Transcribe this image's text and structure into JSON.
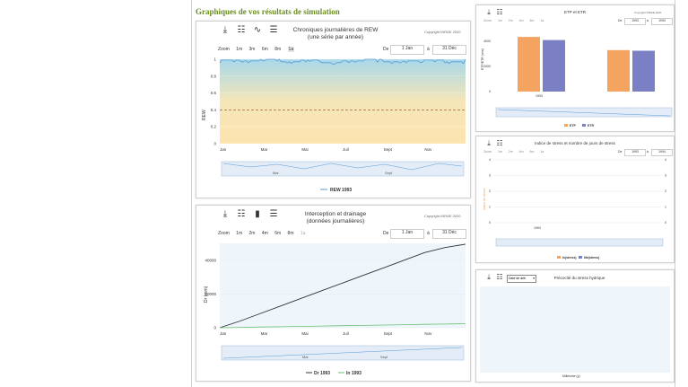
{
  "page_title": "Graphiques de vos résultats de simulation",
  "copyright": "Copyright INRAE 2020",
  "zoom_label": "Zoom",
  "zoom_buttons": [
    "1m",
    "3m",
    "6m",
    "1a"
  ],
  "range_de": "De",
  "range_a": "à",
  "range_from": "1 Jan",
  "range_to": "31 Déc",
  "months": [
    "Jan",
    "Mar",
    "Mai",
    "Juil",
    "Sept",
    "Nov"
  ],
  "rew_chart": {
    "title_line1": "Chroniques journalières de REW",
    "title_line2": "(une série par année)",
    "ylabel": "REW",
    "yticks": [
      "1",
      "0.8",
      "0.6",
      "0.4",
      "0.2",
      "0"
    ],
    "legend": "REW 1993",
    "series_color": "#5b9bd5"
  },
  "interception_chart": {
    "title_line1": "Interception et drainage",
    "title_line2": "(données journalières)",
    "ylabel": "Dr (mm)",
    "yticks": [
      "40000",
      "20000",
      "0"
    ],
    "legend_dr": "Dr 1993",
    "legend_in": "In 1993",
    "zoom_buttons": [
      "1m",
      "2m",
      "4m",
      "6m",
      "8m",
      "1a"
    ]
  },
  "etp_chart": {
    "title": "ETP et ETR",
    "ylabel": "ETP/ETR (mm)",
    "yticks": [
      "4000",
      "2000",
      "0"
    ],
    "xtick": "1993",
    "range_from": "1993",
    "range_to": "1994",
    "legend_etp": "ETP",
    "legend_etr": "ETR",
    "color_etp": "#f4a460",
    "color_etr": "#7b7fc4"
  },
  "stress_chart": {
    "title": "Indice de stress et nombre de jours de stress",
    "ylabel": "Indice de stress",
    "yticks": [
      "4",
      "3",
      "2",
      "1",
      "0"
    ],
    "xtick": "1993",
    "range_from": "1993",
    "range_to": "1994",
    "legend_is": "Is(stress)",
    "legend_nj": "Nb(stress)"
  },
  "precocity_chart": {
    "title": "Précocité du stress hydrique",
    "select_value": "Date de déb",
    "xlabel": "Millésime (y)"
  },
  "chart_data": [
    {
      "type": "line",
      "title": "Chroniques journalières de REW",
      "ylabel": "REW",
      "ylim": [
        0,
        1
      ],
      "series": [
        {
          "name": "REW 1993",
          "values": [
            0.99,
            0.98,
            1.0,
            0.97,
            0.99,
            0.96,
            0.98,
            1.0,
            0.97,
            0.98,
            0.99,
            0.97,
            1.0
          ]
        }
      ],
      "reference_line": 0.4
    },
    {
      "type": "line",
      "title": "Interception et drainage",
      "ylabel": "Dr (mm)",
      "ylim": [
        0,
        50000
      ],
      "series": [
        {
          "name": "Dr 1993",
          "values": [
            0,
            4000,
            8500,
            13000,
            17500,
            22000,
            26500,
            31000,
            35500,
            40000,
            44500,
            47500,
            49500
          ]
        },
        {
          "name": "In 1993",
          "values": [
            0,
            200,
            400,
            600,
            800,
            1000,
            1200,
            1400,
            1600,
            1800,
            2000,
            2200,
            2400
          ]
        }
      ]
    },
    {
      "type": "bar",
      "title": "ETP et ETR",
      "ylim": [
        0,
        5000
      ],
      "categories": [
        "1993",
        "1994"
      ],
      "series": [
        {
          "name": "ETP",
          "values": [
            4350,
            3300
          ]
        },
        {
          "name": "ETR",
          "values": [
            4100,
            3250
          ]
        }
      ]
    }
  ]
}
